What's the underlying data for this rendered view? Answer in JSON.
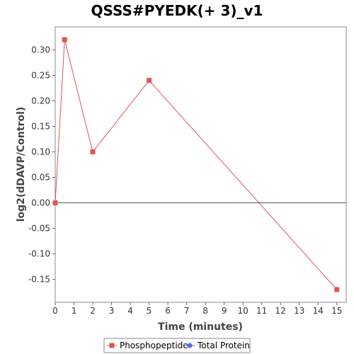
{
  "chart_data": {
    "type": "line",
    "title": "QSSS#PYEDK(+ 3)_v1",
    "xlabel": "Time (minutes)",
    "ylabel": "log2(dDAVP/Control)",
    "xlim": [
      0,
      15.5
    ],
    "ylim": [
      -0.195,
      0.345
    ],
    "xticks": [
      0,
      1,
      2,
      3,
      4,
      5,
      6,
      7,
      8,
      9,
      10,
      11,
      12,
      13,
      14,
      15
    ],
    "yticks": [
      -0.15,
      -0.1,
      -0.05,
      0.0,
      0.05,
      0.1,
      0.15,
      0.2,
      0.25,
      0.3
    ],
    "ytick_labels": [
      "-0.15",
      "-0.10",
      "-0.05",
      "0.00",
      "0.05",
      "0.10",
      "0.15",
      "0.20",
      "0.25",
      "0.30"
    ],
    "zero_line": true,
    "grid": false,
    "legend_position": "bottom",
    "series": [
      {
        "name": "Phosphopeptide",
        "color": "#e05555",
        "marker": "square",
        "points": [
          {
            "x": 0,
            "y": 0.0
          },
          {
            "x": 0.5,
            "y": 0.32
          },
          {
            "x": 2,
            "y": 0.1
          },
          {
            "x": 5,
            "y": 0.24
          },
          {
            "x": 15,
            "y": -0.17
          }
        ]
      },
      {
        "name": "Total Protein",
        "color": "#5566ee",
        "marker": "circle",
        "points": []
      }
    ]
  }
}
